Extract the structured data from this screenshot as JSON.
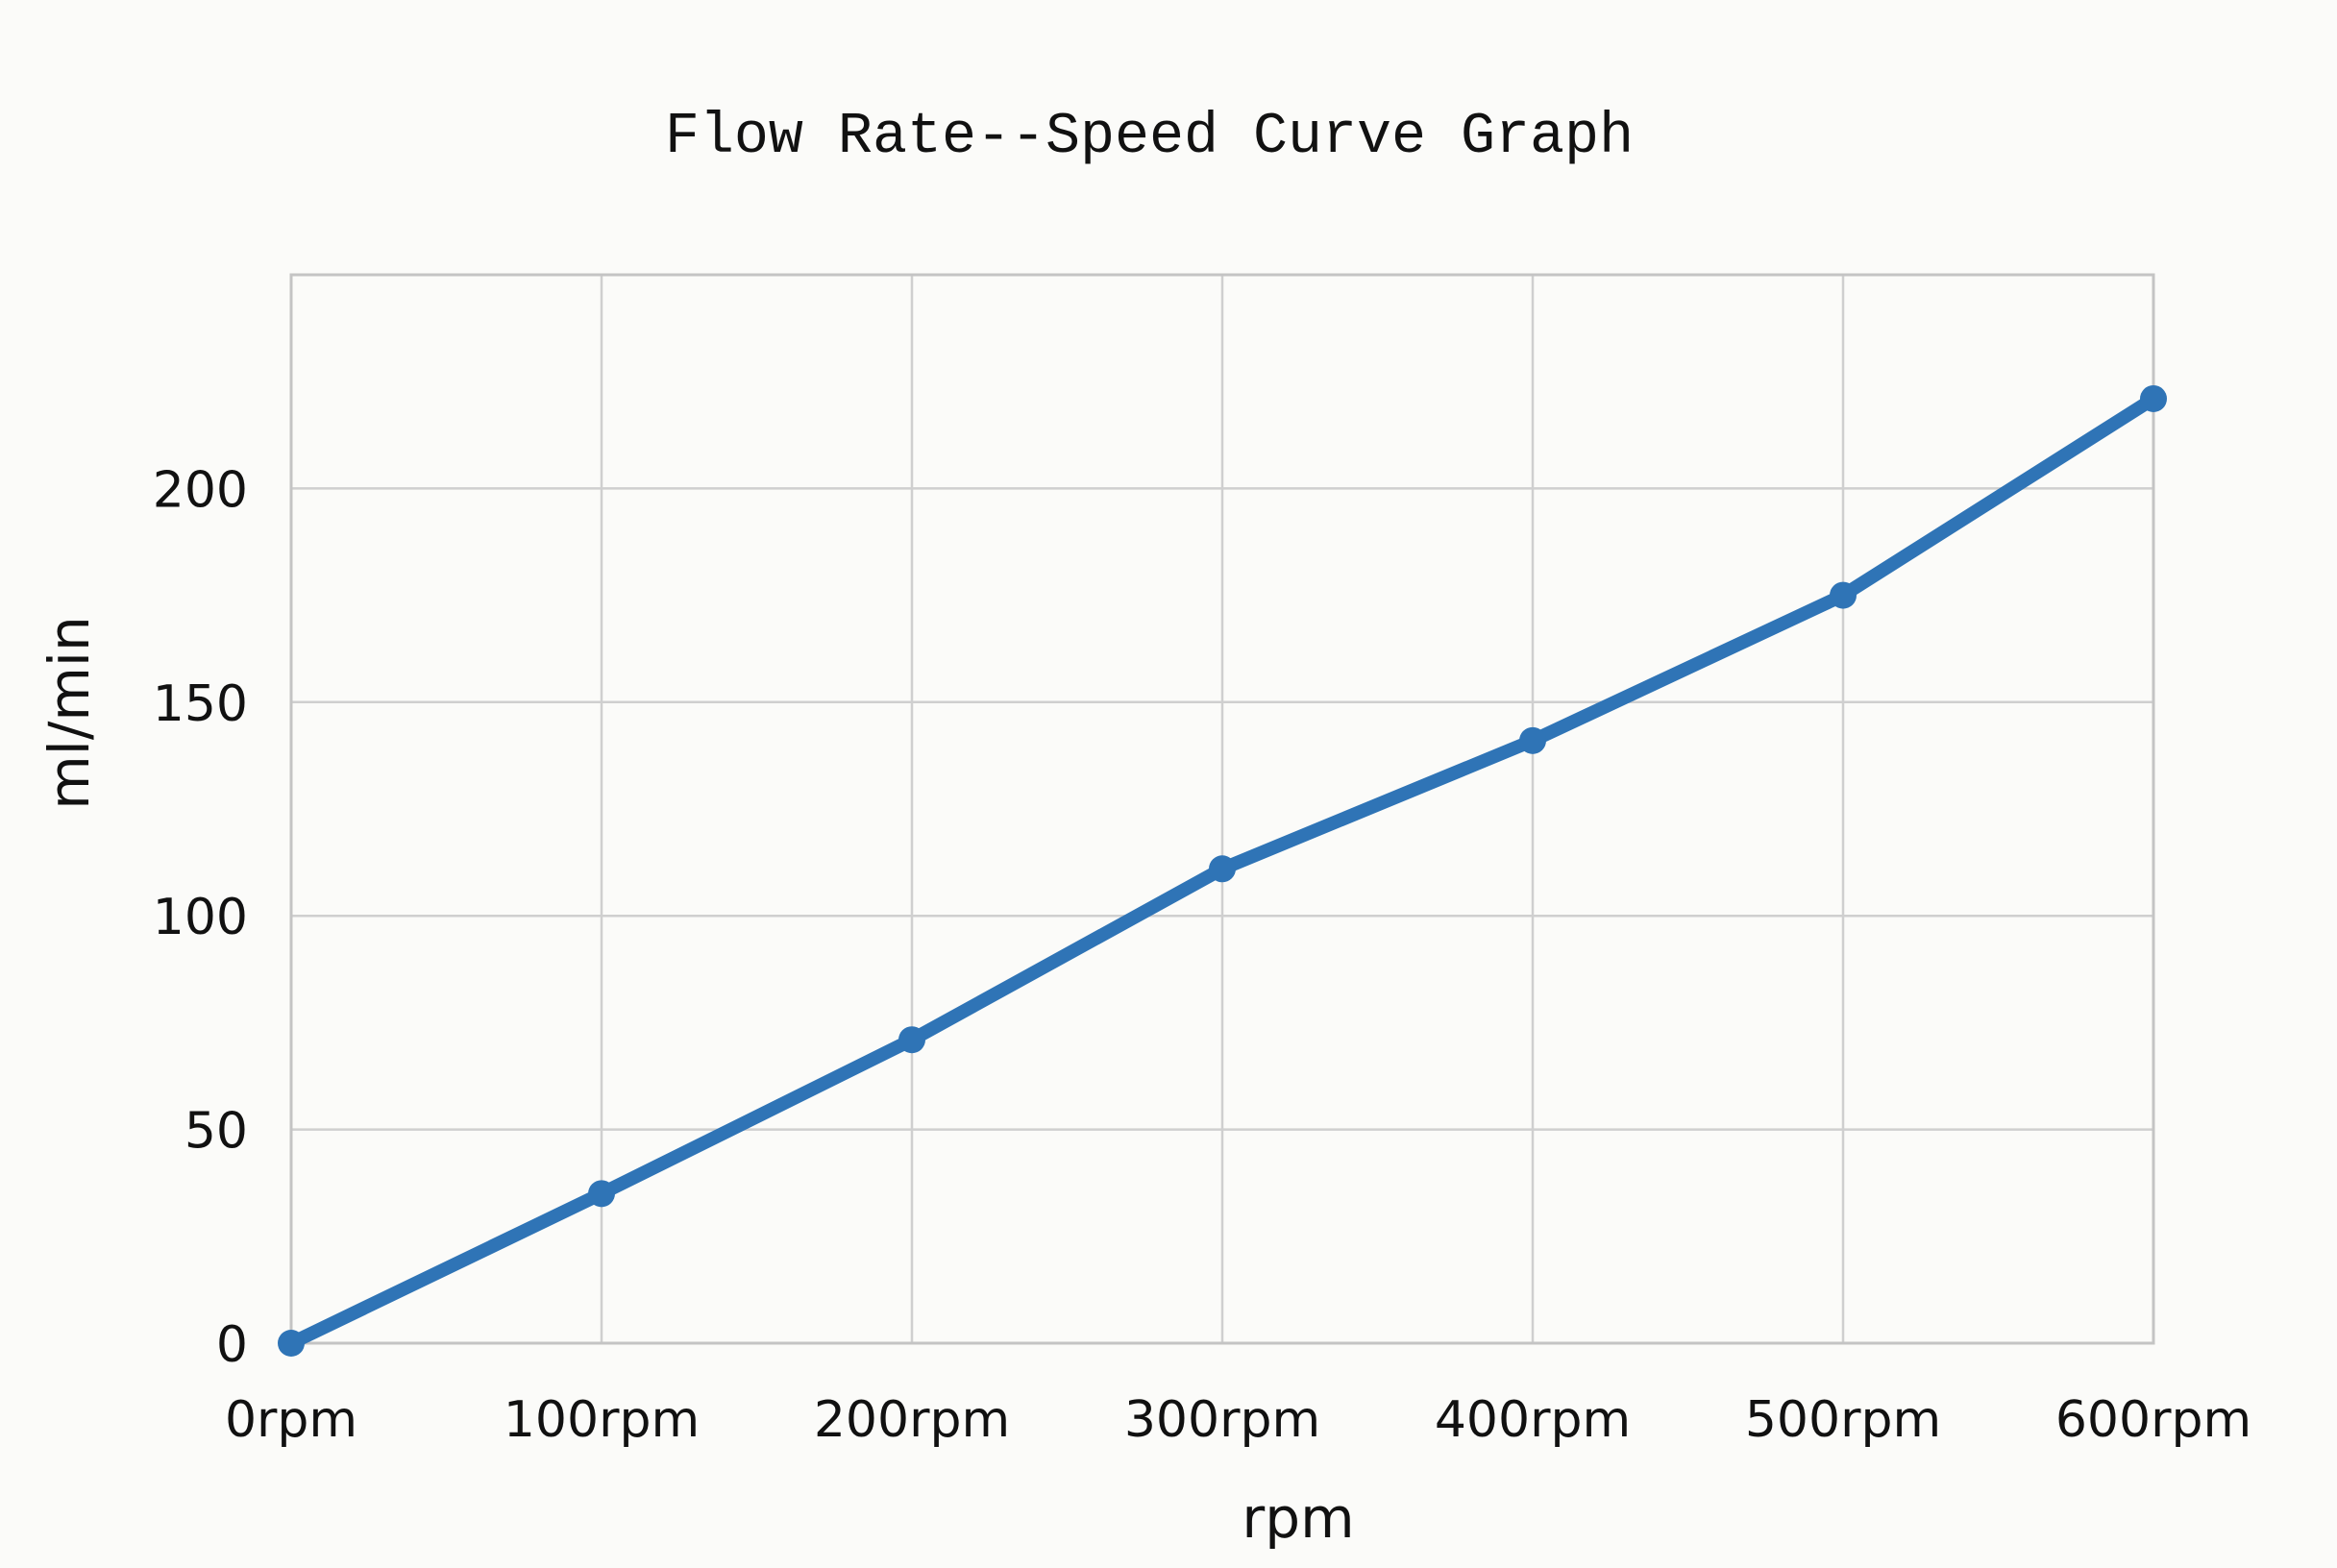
{
  "chart_data": {
    "type": "line",
    "title": "Flow Rate--Speed Curve Graph",
    "xlabel": "rpm",
    "ylabel": "ml/min",
    "categories": [
      "0rpm",
      "100rpm",
      "200rpm",
      "300rpm",
      "400rpm",
      "500rpm",
      "600rpm"
    ],
    "x": [
      0,
      100,
      200,
      300,
      400,
      500,
      600
    ],
    "series": [
      {
        "values": [
          0,
          35,
          71,
          111,
          141,
          175,
          221
        ]
      }
    ],
    "xlim": [
      0,
      600
    ],
    "ylim": [
      0,
      250
    ],
    "yticks": [
      0,
      50,
      100,
      150,
      200
    ],
    "grid": true,
    "legend": "none",
    "colors": {
      "line": "#2f74b6",
      "grid": "#cfcfcf",
      "background": "#fbfbf9"
    }
  }
}
